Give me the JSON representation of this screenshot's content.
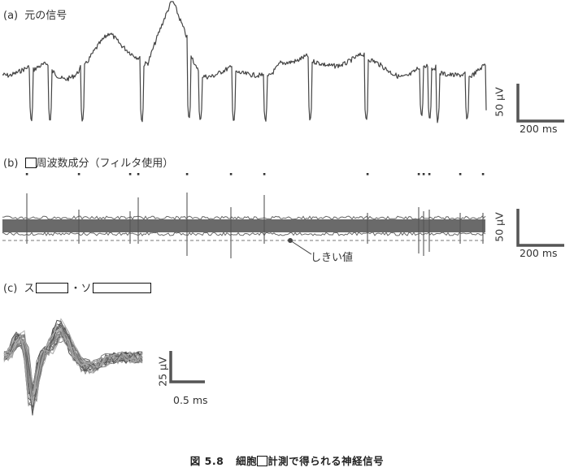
{
  "panels": {
    "a": {
      "label": "(a)",
      "title": "元の信号"
    },
    "b": {
      "label": "(b)",
      "title_suffix": "周波数成分（フィルタ使用）",
      "threshold_label": "しきい値"
    },
    "c": {
      "label": "(c)",
      "title_prefix": "ス",
      "title_middle": "・ソ"
    }
  },
  "scale_bars": {
    "a": {
      "vertical": "50 μV",
      "horizontal": "200 ms"
    },
    "b": {
      "vertical": "50 μV",
      "horizontal": "200 ms"
    },
    "c": {
      "vertical": "25 μV",
      "horizontal": "0.5 ms"
    }
  },
  "caption": {
    "figure_number": "図 5.8",
    "text_prefix": "細胞",
    "text_suffix": "計測で得られる神経信号"
  },
  "colors": {
    "trace": "#444444",
    "band": "#6a6a6a",
    "threshold": "#777777",
    "scale": "#555555"
  }
}
